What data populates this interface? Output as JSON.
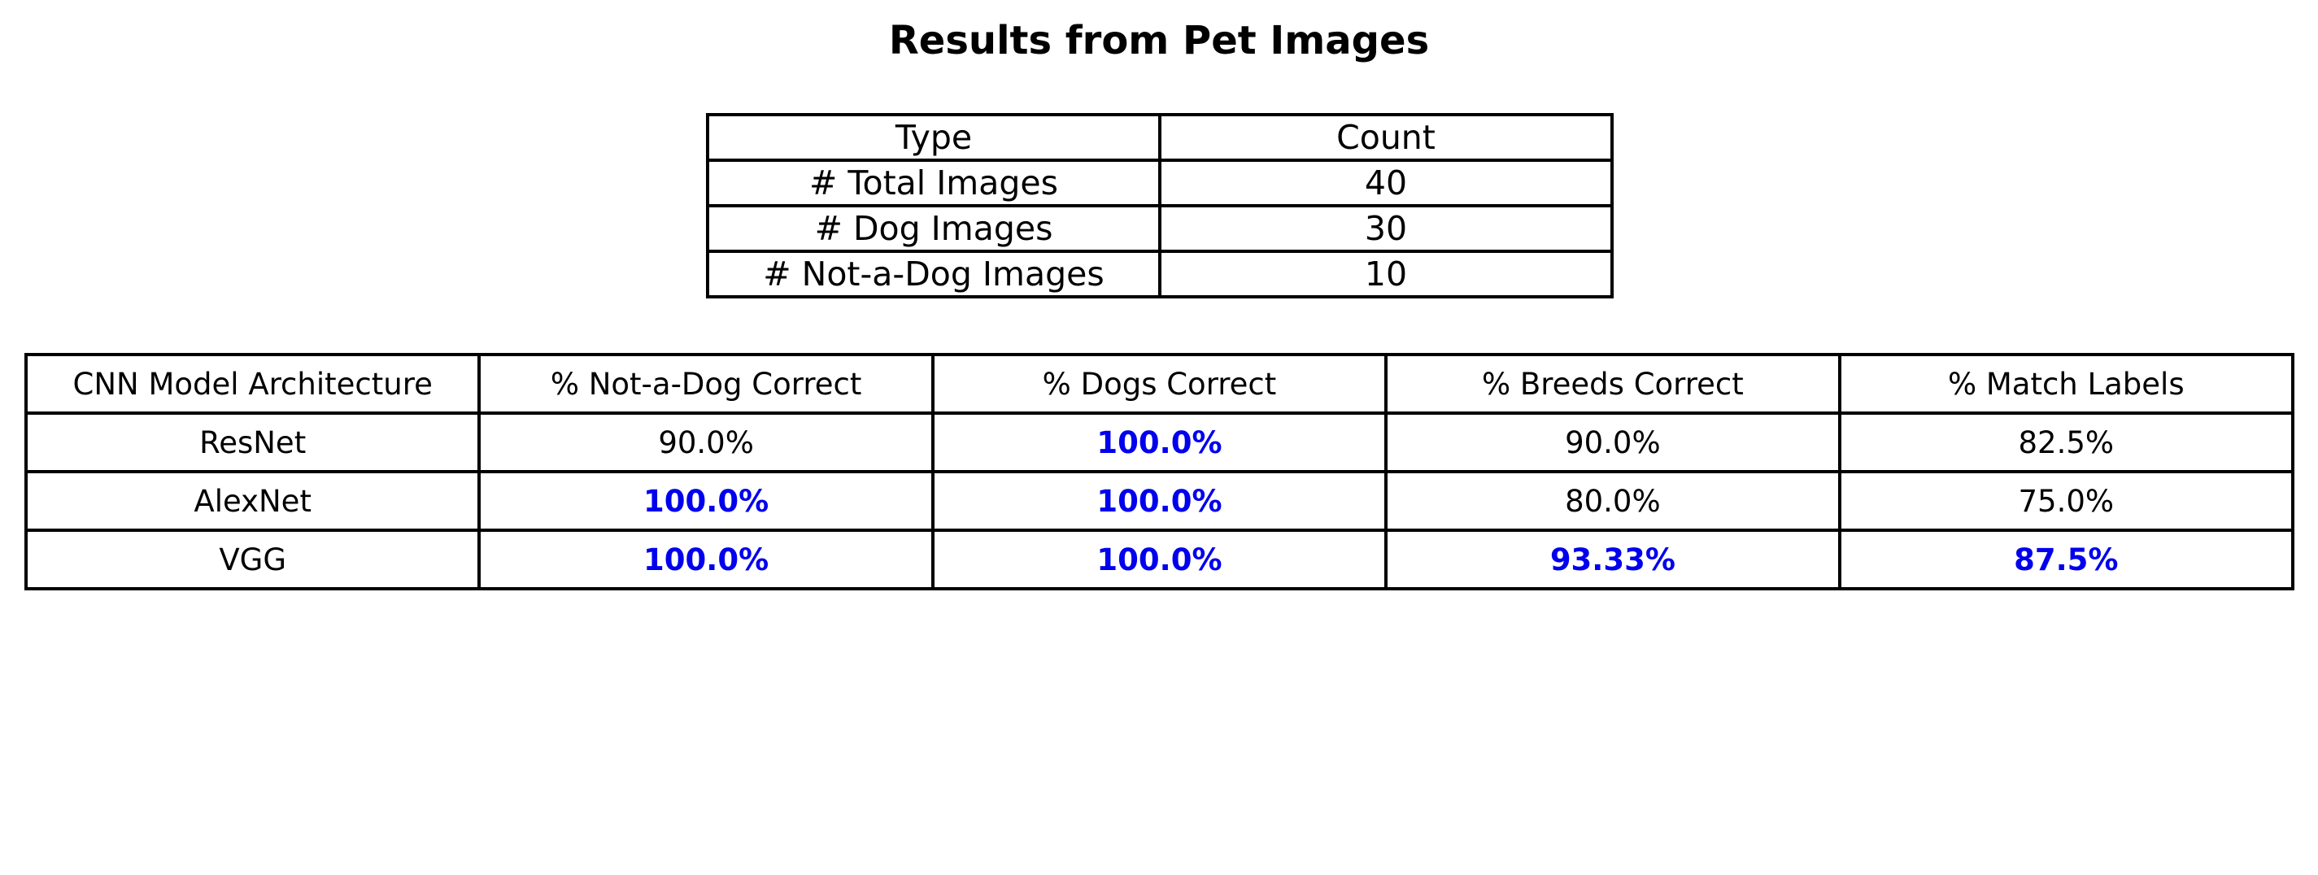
{
  "title": "Results from Pet Images",
  "colors": {
    "text": "#000000",
    "highlight": "#0000ee",
    "border": "#000000",
    "background": "#ffffff"
  },
  "chart_data": [
    {
      "type": "table",
      "columns": [
        "Type",
        "Count"
      ],
      "rows": [
        {
          "type": "# Total Images",
          "count": "40"
        },
        {
          "type": "# Dog Images",
          "count": "30"
        },
        {
          "type": "# Not-a-Dog Images",
          "count": "10"
        }
      ]
    },
    {
      "type": "table",
      "columns": [
        "CNN Model Architecture",
        "% Not-a-Dog Correct",
        "% Dogs Correct",
        "% Breeds Correct",
        "% Match Labels"
      ],
      "rows": [
        {
          "model": "ResNet",
          "values": [
            "90.0%",
            "100.0%",
            "90.0%",
            "82.5%"
          ],
          "highlighted": [
            false,
            true,
            false,
            false
          ]
        },
        {
          "model": "AlexNet",
          "values": [
            "100.0%",
            "100.0%",
            "80.0%",
            "75.0%"
          ],
          "highlighted": [
            true,
            true,
            false,
            false
          ]
        },
        {
          "model": "VGG",
          "values": [
            "100.0%",
            "100.0%",
            "93.33%",
            "87.5%"
          ],
          "highlighted": [
            true,
            true,
            true,
            true
          ]
        }
      ]
    }
  ]
}
